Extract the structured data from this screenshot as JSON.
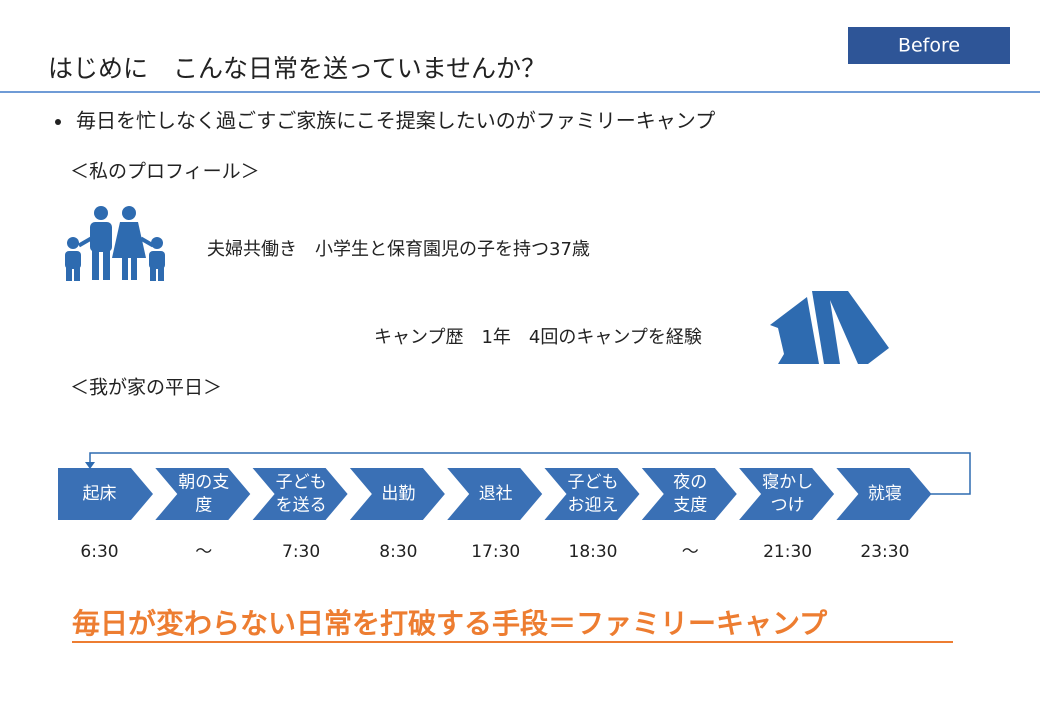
{
  "badge": "Before",
  "title": "はじめに　こんな日常を送っていませんか？",
  "bullet": "毎日を忙しなく過ごすご家族にこそ提案したいのがファミリーキャンプ",
  "profile": {
    "heading": "＜私のプロフィール＞",
    "family": "夫婦共働き　小学生と保育園児の子を持つ37歳",
    "camp": "キャンプ歴　1年　4回のキャンプを経験"
  },
  "weekday": {
    "heading": "＜我が家の平日＞",
    "steps": [
      {
        "lines": [
          "起床"
        ],
        "time": "6:30"
      },
      {
        "lines": [
          "朝の支",
          "度"
        ],
        "time": "～"
      },
      {
        "lines": [
          "子ども",
          "を送る"
        ],
        "time": "7:30"
      },
      {
        "lines": [
          "出勤"
        ],
        "time": "8:30"
      },
      {
        "lines": [
          "退社"
        ],
        "time": "17:30"
      },
      {
        "lines": [
          "子ども",
          "お迎え"
        ],
        "time": "18:30"
      },
      {
        "lines": [
          "夜の",
          "支度"
        ],
        "time": "～"
      },
      {
        "lines": [
          "寝かし",
          "つけ"
        ],
        "time": "21:30"
      },
      {
        "lines": [
          "就寝"
        ],
        "time": "23:30"
      }
    ]
  },
  "conclusion": "毎日が変わらない日常を打破する手段＝ファミリーキャンプ"
}
